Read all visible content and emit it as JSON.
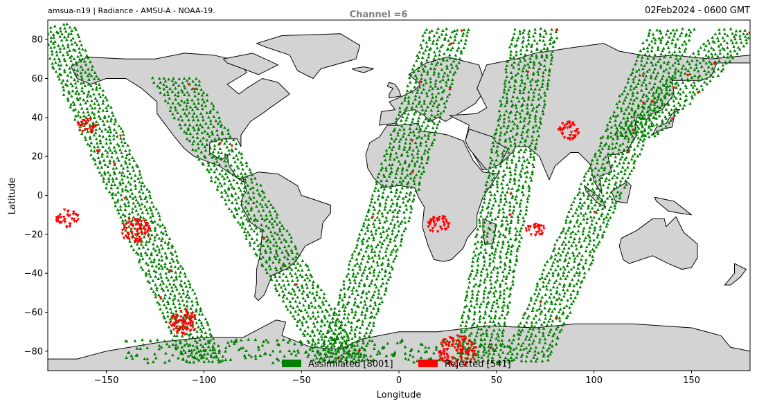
{
  "header": {
    "left": "amsua-n19  |  Radiance - AMSU-A - NOAA-19.",
    "center": "Channel =6",
    "right": "02Feb2024 - 0600 GMT"
  },
  "chart_data": {
    "type": "scatter",
    "title": "Channel =6",
    "xlabel": "Longitude",
    "ylabel": "Latitude",
    "xlim": [
      -180,
      180
    ],
    "ylim": [
      -90,
      90
    ],
    "xticks": [
      -150,
      -100,
      -50,
      0,
      50,
      100,
      150
    ],
    "yticks": [
      -80,
      -60,
      -40,
      -20,
      0,
      20,
      40,
      60,
      80
    ],
    "xtick_labels": [
      "−150",
      "−100",
      "−50",
      "0",
      "50",
      "100",
      "150"
    ],
    "ytick_labels": [
      "−80",
      "−60",
      "−40",
      "−20",
      "0",
      "20",
      "40",
      "60",
      "80"
    ],
    "grid": false,
    "legend": {
      "placement": "bottom-center",
      "orientation": "horizontal"
    },
    "series": [
      {
        "name": "Assimilated [8001]",
        "color": "#008000",
        "marker": "triangle-up",
        "count": 8001
      },
      {
        "name": "Rejected [541]",
        "color": "#ff0000",
        "marker": "triangle-down",
        "count": 541
      }
    ],
    "swaths": [
      {
        "lat_start": 90,
        "lon_start": -178,
        "lat_end": -85,
        "lon_end": -100,
        "width": 20
      },
      {
        "lat_start": 60,
        "lon_start": -115,
        "lat_end": -85,
        "lon_end": -30,
        "width": 22
      },
      {
        "lat_start": 85,
        "lon_start": 25,
        "lat_end": -85,
        "lon_end": -30,
        "width": 22
      },
      {
        "lat_start": 85,
        "lon_start": 70,
        "lat_end": -85,
        "lon_end": 40,
        "width": 22
      },
      {
        "lat_start": 85,
        "lon_start": 140,
        "lat_end": -85,
        "lon_end": 65,
        "width": 22
      },
      {
        "lat_start": 85,
        "lon_start": 175,
        "lat_end": 30,
        "lon_end": 120,
        "width": 22
      }
    ],
    "rejected_clusters": [
      {
        "lon": -160,
        "lat": 36,
        "r": 5
      },
      {
        "lon": -135,
        "lat": -18,
        "r": 8
      },
      {
        "lon": -170,
        "lat": -12,
        "r": 6
      },
      {
        "lon": 87,
        "lat": 33,
        "r": 6
      },
      {
        "lon": 20,
        "lat": -15,
        "r": 6
      },
      {
        "lon": 70,
        "lat": -18,
        "r": 5
      },
      {
        "lon": -110,
        "lat": -65,
        "r": 8
      },
      {
        "lon": 30,
        "lat": -80,
        "r": 10
      }
    ],
    "colors": {
      "land": "#d3d3d3",
      "coast": "#000000"
    }
  }
}
